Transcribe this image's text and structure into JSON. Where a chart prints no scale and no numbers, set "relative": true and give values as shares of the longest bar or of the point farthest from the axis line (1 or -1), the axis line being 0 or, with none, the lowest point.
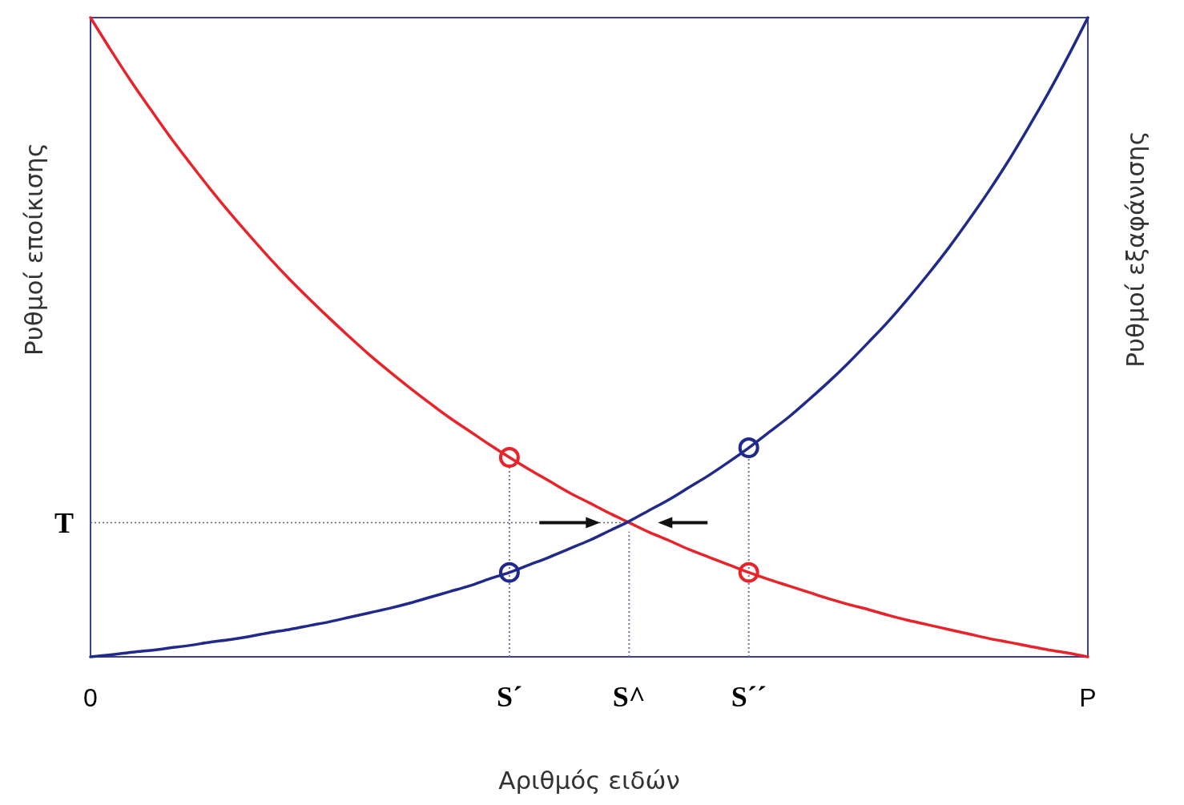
{
  "chart_data": {
    "type": "line",
    "relative": true,
    "xlabel": "Αριθμός ειδών",
    "ylabel": "Ρυθμοί εποίκισης",
    "y2label": "Ρυθμοί εξαφάνισης",
    "tick_labels": "x",
    "marker": "none",
    "line_style": "solid",
    "categories": [
      "0",
      null,
      null,
      null,
      null,
      null,
      null,
      null,
      null,
      null,
      null,
      null,
      null,
      null,
      null,
      null,
      null,
      null,
      null,
      null,
      null,
      "S´",
      null,
      null,
      null,
      null,
      null,
      "S^",
      null,
      null,
      null,
      null,
      null,
      "S´´",
      null,
      null,
      null,
      null,
      null,
      null,
      null,
      null,
      null,
      null,
      null,
      null,
      null,
      null,
      null,
      null,
      "P"
    ],
    "series": [
      {
        "color": "#e8232a",
        "values": [
          1,
          0.95,
          0.902,
          0.857,
          0.813,
          0.772,
          0.732,
          0.694,
          0.658,
          0.623,
          0.59,
          0.559,
          0.529,
          0.5,
          0.472,
          0.446,
          0.421,
          0.397,
          0.374,
          0.353,
          0.332,
          0.312,
          0.293,
          0.275,
          0.257,
          0.241,
          0.225,
          0.21,
          0.195,
          0.182,
          0.168,
          0.156,
          0.144,
          0.132,
          0.121,
          0.111,
          0.101,
          0.091,
          0.082,
          0.074,
          0.065,
          0.057,
          0.05,
          0.043,
          0.036,
          0.029,
          0.023,
          0.017,
          0.011,
          0.006,
          0
        ]
      },
      {
        "color": "#1f2a8a",
        "values": [
          0,
          0.003,
          0.007,
          0.01,
          0.014,
          0.018,
          0.023,
          0.027,
          0.032,
          0.038,
          0.043,
          0.049,
          0.055,
          0.062,
          0.069,
          0.076,
          0.084,
          0.093,
          0.102,
          0.111,
          0.122,
          0.132,
          0.144,
          0.156,
          0.169,
          0.182,
          0.197,
          0.212,
          0.229,
          0.246,
          0.265,
          0.284,
          0.305,
          0.327,
          0.351,
          0.375,
          0.402,
          0.43,
          0.46,
          0.492,
          0.525,
          0.561,
          0.599,
          0.639,
          0.682,
          0.727,
          0.775,
          0.827,
          0.881,
          0.939,
          1
        ]
      },
      {
        "type": "scatter",
        "marker": "circle",
        "color": "#e8232a",
        "values": [
          null,
          null,
          null,
          null,
          null,
          null,
          null,
          null,
          null,
          null,
          null,
          null,
          null,
          null,
          null,
          null,
          null,
          null,
          null,
          null,
          null,
          0.312,
          null,
          null,
          null,
          null,
          null,
          null,
          null,
          null,
          null,
          null,
          null,
          0.132,
          null,
          null,
          null,
          null,
          null,
          null,
          null,
          null,
          null,
          null,
          null,
          null,
          null,
          null,
          null,
          null,
          null
        ]
      },
      {
        "type": "scatter",
        "marker": "circle",
        "color": "#1f2a8a",
        "values": [
          null,
          null,
          null,
          null,
          null,
          null,
          null,
          null,
          null,
          null,
          null,
          null,
          null,
          null,
          null,
          null,
          null,
          null,
          null,
          null,
          null,
          0.132,
          null,
          null,
          null,
          null,
          null,
          null,
          null,
          null,
          null,
          null,
          null,
          0.327,
          null,
          null,
          null,
          null,
          null,
          null,
          null,
          null,
          null,
          null,
          null,
          null,
          null,
          null,
          null,
          null,
          null
        ]
      }
    ],
    "ref_lines": [
      {
        "axis": "x",
        "value": "S´",
        "label": null,
        "line_style": "dotted"
      },
      {
        "axis": "x",
        "value": "S^",
        "label": null,
        "line_style": "dotted"
      },
      {
        "axis": "x",
        "value": "S´´",
        "label": null,
        "line_style": "dotted"
      },
      {
        "axis": "y",
        "value": 0.21,
        "label": "T",
        "line_style": "dotted"
      }
    ]
  }
}
